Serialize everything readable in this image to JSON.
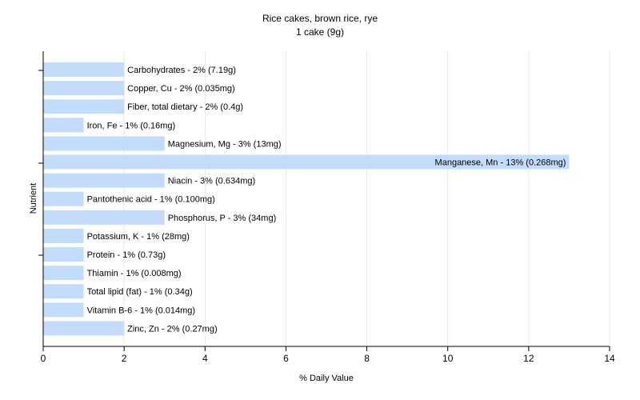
{
  "chart_data": {
    "type": "bar",
    "orientation": "horizontal",
    "title": "Rice cakes, brown rice, rye",
    "subtitle": "1 cake (9g)",
    "xlabel": "% Daily Value",
    "ylabel": "Nutrient",
    "xlim": [
      0,
      14
    ],
    "x_ticks": [
      "0",
      "2",
      "4",
      "6",
      "8",
      "10",
      "12",
      "14"
    ],
    "grid": true,
    "bar_color": "#c4dcfc",
    "categories": [
      "Carbohydrates",
      "Copper, Cu",
      "Fiber, total dietary",
      "Iron, Fe",
      "Magnesium, Mg",
      "Manganese, Mn",
      "Niacin",
      "Pantothenic acid",
      "Phosphorus, P",
      "Potassium, K",
      "Protein",
      "Thiamin",
      "Total lipid (fat)",
      "Vitamin B-6",
      "Zinc, Zn"
    ],
    "values": [
      2,
      2,
      2,
      1,
      3,
      13,
      3,
      1,
      3,
      1,
      1,
      1,
      1,
      1,
      2
    ],
    "labels": [
      "Carbohydrates - 2% (7.19g)",
      "Copper, Cu - 2% (0.035mg)",
      "Fiber, total dietary - 2% (0.4g)",
      "Iron, Fe - 1% (0.16mg)",
      "Magnesium, Mg - 3% (13mg)",
      "Manganese, Mn - 13% (0.268mg)",
      "Niacin - 3% (0.634mg)",
      "Pantothenic acid - 1% (0.100mg)",
      "Phosphorus, P - 3% (34mg)",
      "Potassium, K - 1% (28mg)",
      "Protein - 1% (0.73g)",
      "Thiamin - 1% (0.008mg)",
      "Total lipid (fat) - 1% (0.34g)",
      "Vitamin B-6 - 1% (0.014mg)",
      "Zinc, Zn - 2% (0.27mg)"
    ]
  }
}
